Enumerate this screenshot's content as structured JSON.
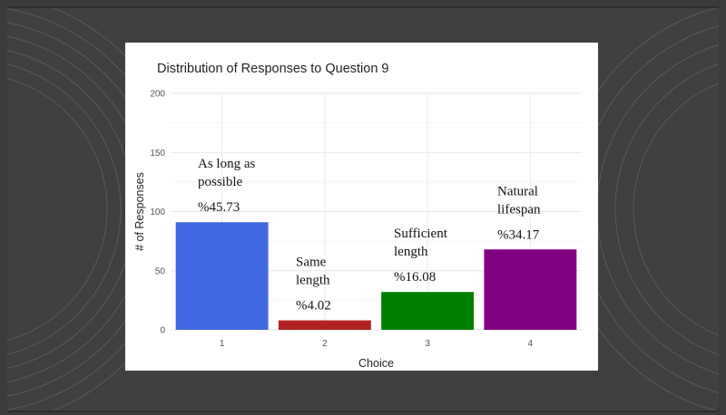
{
  "chart_data": {
    "type": "bar",
    "title": "Distribution of Responses to Question 9",
    "xlabel": "Choice",
    "ylabel": "# of Responses",
    "categories": [
      "1",
      "2",
      "3",
      "4"
    ],
    "values": [
      91,
      8,
      32,
      68
    ],
    "ylim": [
      0,
      200
    ],
    "yticks": [
      0,
      50,
      100,
      150,
      200
    ],
    "grid": true,
    "bar_colors": [
      "#4169e1",
      "#b22222",
      "#008000",
      "#800080"
    ],
    "annotations": [
      {
        "category": "1",
        "label": [
          "As long as",
          "possible"
        ],
        "percent": "%45.73"
      },
      {
        "category": "2",
        "label": [
          "Same",
          "length"
        ],
        "percent": "%4.02"
      },
      {
        "category": "3",
        "label": [
          "Sufficient",
          "length"
        ],
        "percent": "%16.08"
      },
      {
        "category": "4",
        "label": [
          "Natural",
          "lifespan"
        ],
        "percent": "%34.17"
      }
    ]
  }
}
